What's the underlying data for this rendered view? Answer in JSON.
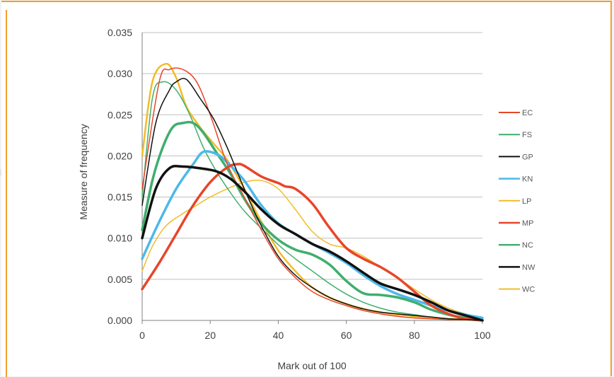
{
  "colors": {
    "frame": "#f0a030",
    "background": "#f3f3f4",
    "gridline": "#bfbfbf",
    "axis": "#808080"
  },
  "chart_data": {
    "type": "line",
    "xlabel": "Mark out of 100",
    "ylabel": "Measure of frequency",
    "xlim": [
      0,
      100
    ],
    "ylim": [
      0,
      0.035
    ],
    "xticks": [
      "0",
      "20",
      "40",
      "60",
      "80",
      "100"
    ],
    "yticks": [
      "0.000",
      "0.005",
      "0.010",
      "0.015",
      "0.020",
      "0.025",
      "0.030",
      "0.035"
    ],
    "grid": "horizontal",
    "legend_position": "right",
    "series": [
      {
        "name": "EC",
        "color": "#e8452a",
        "width": 1.5,
        "x": [
          0,
          5,
          8,
          12,
          16,
          20,
          25,
          30,
          35,
          40,
          45,
          50,
          55,
          60,
          65,
          70,
          75,
          80,
          85,
          90,
          95,
          100
        ],
        "y": [
          0.016,
          0.029,
          0.0305,
          0.0305,
          0.029,
          0.025,
          0.019,
          0.015,
          0.011,
          0.0075,
          0.0052,
          0.0035,
          0.0025,
          0.0018,
          0.0012,
          0.0008,
          0.0005,
          0.0003,
          0.0002,
          0.0001,
          0.0001,
          0.0
        ]
      },
      {
        "name": "FS",
        "color": "#3fae6d",
        "width": 1.5,
        "x": [
          0,
          3,
          6,
          10,
          14,
          18,
          22,
          26,
          30,
          35,
          40,
          45,
          50,
          55,
          60,
          65,
          70,
          75,
          80,
          85,
          90,
          95,
          100
        ],
        "y": [
          0.015,
          0.027,
          0.029,
          0.028,
          0.025,
          0.021,
          0.018,
          0.0155,
          0.0133,
          0.0112,
          0.0092,
          0.0075,
          0.006,
          0.0045,
          0.0032,
          0.0022,
          0.0015,
          0.001,
          0.0007,
          0.0004,
          0.0002,
          0.0001,
          0.0
        ]
      },
      {
        "name": "GP",
        "color": "#111111",
        "width": 1.5,
        "x": [
          0,
          4,
          8,
          10,
          13,
          17,
          21,
          25,
          30,
          35,
          40,
          45,
          50,
          55,
          60,
          65,
          70,
          75,
          80,
          85,
          90,
          95,
          100
        ],
        "y": [
          0.014,
          0.024,
          0.028,
          0.029,
          0.0293,
          0.027,
          0.0245,
          0.021,
          0.016,
          0.0115,
          0.0078,
          0.0055,
          0.004,
          0.0028,
          0.002,
          0.0014,
          0.001,
          0.0008,
          0.0006,
          0.0004,
          0.0002,
          0.0001,
          0.0
        ]
      },
      {
        "name": "KN",
        "color": "#4db8ea",
        "width": 3.5,
        "x": [
          0,
          5,
          10,
          15,
          18,
          22,
          25,
          30,
          35,
          40,
          45,
          50,
          55,
          60,
          65,
          70,
          75,
          80,
          85,
          90,
          95,
          100
        ],
        "y": [
          0.0075,
          0.012,
          0.016,
          0.019,
          0.0205,
          0.0202,
          0.0192,
          0.017,
          0.014,
          0.0118,
          0.0105,
          0.0093,
          0.0082,
          0.007,
          0.0055,
          0.0042,
          0.0032,
          0.0025,
          0.0018,
          0.0012,
          0.0007,
          0.0003
        ]
      },
      {
        "name": "LP",
        "color": "#f2bc28",
        "width": 2.5,
        "x": [
          0,
          3,
          7,
          10,
          13,
          17,
          21,
          25,
          30,
          35,
          40,
          45,
          50,
          55,
          60,
          65,
          70,
          75,
          80,
          85,
          90,
          95,
          100
        ],
        "y": [
          0.02,
          0.029,
          0.0312,
          0.0295,
          0.026,
          0.0235,
          0.0215,
          0.0195,
          0.016,
          0.012,
          0.0085,
          0.006,
          0.004,
          0.0028,
          0.002,
          0.0014,
          0.001,
          0.0007,
          0.0005,
          0.0003,
          0.0002,
          0.0001,
          0.0
        ]
      },
      {
        "name": "MP",
        "color": "#e8452a",
        "width": 3.5,
        "x": [
          0,
          5,
          10,
          15,
          20,
          25,
          28,
          30,
          35,
          40,
          42,
          45,
          50,
          55,
          60,
          65,
          70,
          75,
          80,
          85,
          90,
          95,
          100
        ],
        "y": [
          0.0038,
          0.007,
          0.0105,
          0.014,
          0.0168,
          0.0186,
          0.019,
          0.0188,
          0.0175,
          0.0167,
          0.0163,
          0.016,
          0.0142,
          0.0113,
          0.0088,
          0.0075,
          0.0065,
          0.0052,
          0.0035,
          0.0018,
          0.0008,
          0.0002,
          0.0
        ]
      },
      {
        "name": "NC",
        "color": "#3fae6d",
        "width": 3.5,
        "x": [
          0,
          3,
          6,
          9,
          12,
          15,
          18,
          22,
          26,
          30,
          35,
          40,
          45,
          50,
          55,
          60,
          65,
          70,
          75,
          80,
          85,
          90,
          95,
          100
        ],
        "y": [
          0.011,
          0.017,
          0.021,
          0.0235,
          0.024,
          0.024,
          0.0228,
          0.0203,
          0.0178,
          0.0148,
          0.0118,
          0.0098,
          0.0086,
          0.008,
          0.0068,
          0.0048,
          0.0033,
          0.0031,
          0.0028,
          0.0022,
          0.0013,
          0.0007,
          0.0003,
          0.0
        ]
      },
      {
        "name": "NW",
        "color": "#111111",
        "width": 3.5,
        "x": [
          0,
          4,
          8,
          12,
          17,
          22,
          26,
          30,
          35,
          40,
          45,
          50,
          55,
          60,
          65,
          70,
          75,
          80,
          85,
          90,
          95,
          100
        ],
        "y": [
          0.01,
          0.016,
          0.0185,
          0.0187,
          0.0185,
          0.0181,
          0.0172,
          0.0157,
          0.0135,
          0.0117,
          0.0105,
          0.0093,
          0.0084,
          0.0072,
          0.0058,
          0.0045,
          0.0038,
          0.0031,
          0.0022,
          0.0012,
          0.0006,
          0.0
        ]
      },
      {
        "name": "WC",
        "color": "#f2bc28",
        "width": 1.5,
        "x": [
          0,
          3,
          7,
          12,
          16,
          20,
          25,
          30,
          35,
          40,
          45,
          50,
          55,
          60,
          65,
          70,
          75,
          80,
          85,
          90,
          95,
          100
        ],
        "y": [
          0.006,
          0.009,
          0.0115,
          0.013,
          0.014,
          0.015,
          0.016,
          0.0168,
          0.017,
          0.016,
          0.0135,
          0.0108,
          0.0093,
          0.0088,
          0.0078,
          0.0065,
          0.0052,
          0.0038,
          0.0025,
          0.0015,
          0.0008,
          0.0003
        ]
      }
    ]
  }
}
